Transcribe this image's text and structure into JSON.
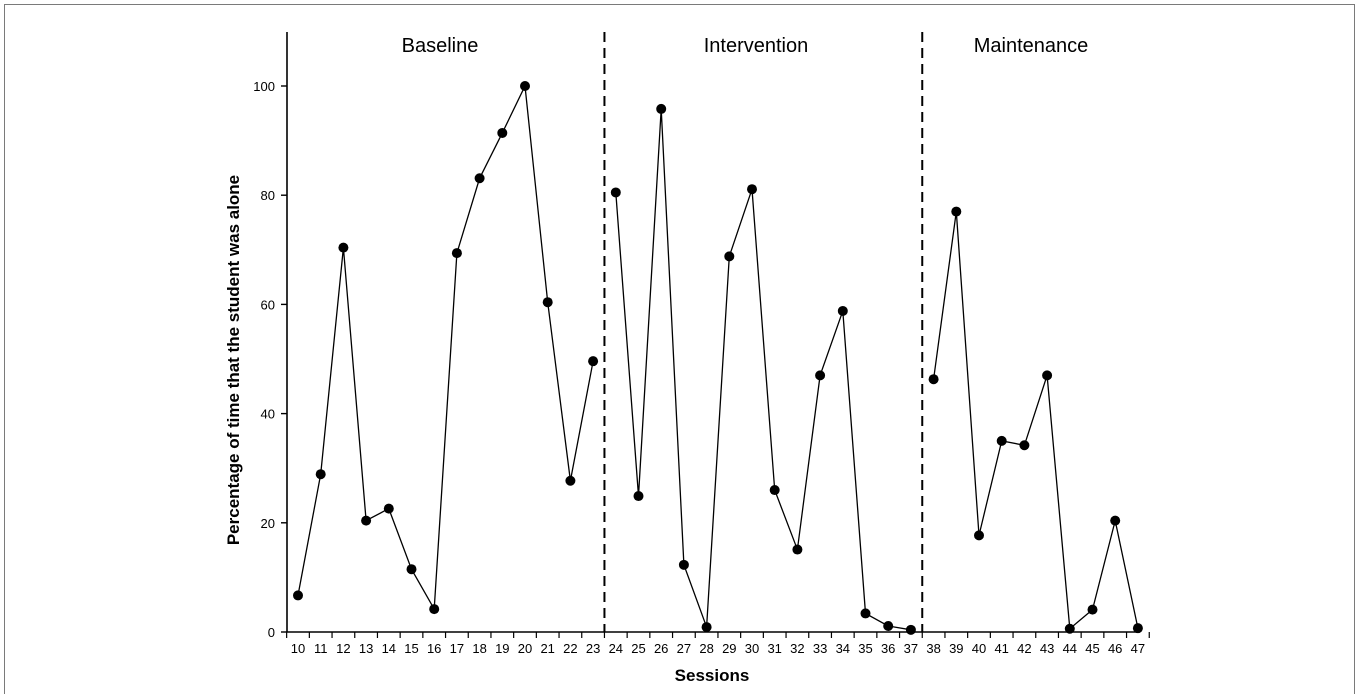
{
  "chart_data": {
    "type": "line",
    "title": "",
    "xlabel": "Sessions",
    "ylabel": "Percentage of time that the student was alone",
    "ylim": [
      0,
      110
    ],
    "yticks": [
      0,
      20,
      40,
      60,
      80,
      100
    ],
    "x_categories": [
      "10",
      "11",
      "12",
      "13",
      "14",
      "15",
      "16",
      "17",
      "18",
      "19",
      "20",
      "21",
      "22",
      "23",
      "24",
      "25",
      "26",
      "27",
      "28",
      "29",
      "30",
      "31",
      "32",
      "33",
      "34",
      "35",
      "36",
      "37",
      "38",
      "39",
      "40",
      "41",
      "42",
      "43",
      "44",
      "45",
      "46",
      "47"
    ],
    "phases": [
      {
        "name": "Baseline",
        "x": [
          10,
          11,
          12,
          13,
          14,
          15,
          16,
          17,
          18,
          19,
          20,
          21,
          22,
          23
        ],
        "values": [
          6.7,
          28.9,
          70.4,
          20.4,
          22.6,
          11.5,
          4.2,
          69.4,
          83.1,
          91.4,
          100.0,
          60.4,
          27.7,
          49.6
        ]
      },
      {
        "name": "Intervention",
        "x": [
          24,
          25,
          26,
          27,
          28,
          29,
          30,
          31,
          32,
          33,
          34,
          35,
          36,
          37
        ],
        "values": [
          80.5,
          24.9,
          95.8,
          12.3,
          0.9,
          68.8,
          81.1,
          26.0,
          15.1,
          47.0,
          58.8,
          3.4,
          1.1,
          0.4
        ]
      },
      {
        "name": "Maintenance",
        "x": [
          38,
          39,
          40,
          41,
          42,
          43,
          44,
          45,
          46,
          47
        ],
        "values": [
          46.3,
          77.0,
          17.7,
          35.0,
          34.2,
          47.0,
          0.6,
          4.1,
          20.4,
          0.7
        ]
      }
    ],
    "phase_change_lines": [
      "between 23 and 24",
      "between 37 and 38"
    ],
    "marker": "filled circle",
    "line_color": "#000000",
    "grid": false,
    "legend": "none"
  }
}
